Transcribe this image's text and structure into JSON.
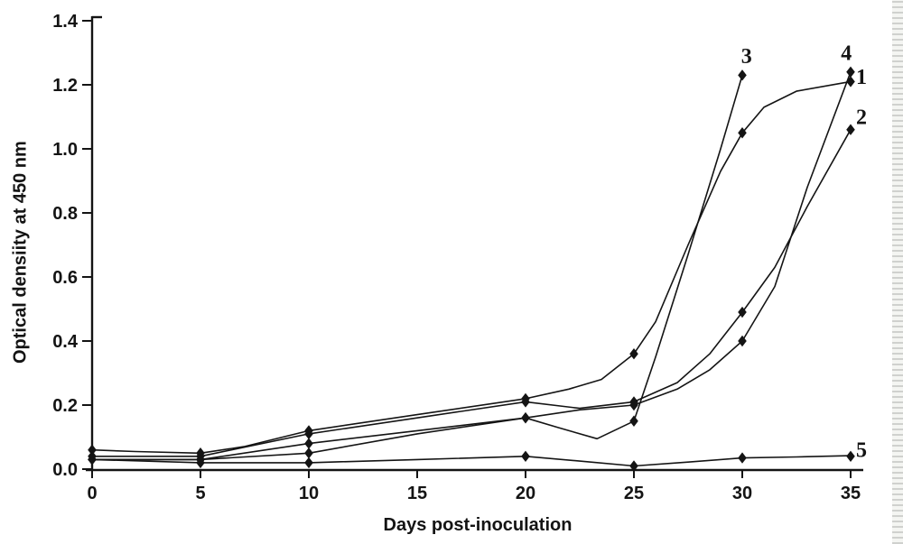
{
  "figure": {
    "background": "#ffffff",
    "ink": "#141414",
    "scan_strip_colors": [
      "#c7c9c6",
      "#f2f3f0"
    ]
  },
  "chart_data": {
    "type": "line",
    "title": "",
    "xlabel": "Days post-inoculation",
    "ylabel": "Optical densiity at 450 nm",
    "xlim": [
      0,
      35
    ],
    "ylim": [
      0.0,
      1.4
    ],
    "xticks": [
      0,
      5,
      10,
      15,
      20,
      25,
      30,
      35
    ],
    "ytick_labels": [
      "0.0",
      "0.2",
      "0.4",
      "0.6",
      "0.8",
      "1.0",
      "1.2",
      "1.4"
    ],
    "grid": false,
    "legend_position": "numeric labels at curve ends",
    "marker_shape": "filled-diamond",
    "series": [
      {
        "name": "1",
        "markers": [
          [
            0,
            0.06
          ],
          [
            5,
            0.05
          ],
          [
            10,
            0.12
          ],
          [
            20,
            0.22
          ],
          [
            25,
            0.36
          ],
          [
            30,
            1.05
          ],
          [
            35,
            1.21
          ]
        ],
        "path": [
          [
            0,
            0.06
          ],
          [
            2,
            0.055
          ],
          [
            5,
            0.05
          ],
          [
            7,
            0.07
          ],
          [
            10,
            0.12
          ],
          [
            15,
            0.17
          ],
          [
            20,
            0.22
          ],
          [
            22,
            0.25
          ],
          [
            23.5,
            0.28
          ],
          [
            25,
            0.36
          ],
          [
            26,
            0.46
          ],
          [
            27.5,
            0.7
          ],
          [
            29,
            0.93
          ],
          [
            30,
            1.05
          ],
          [
            31,
            1.13
          ],
          [
            32.5,
            1.18
          ],
          [
            35,
            1.21
          ]
        ],
        "label": {
          "text": "1",
          "x": 35.5,
          "y": 1.225
        }
      },
      {
        "name": "2",
        "markers": [
          [
            0,
            0.04
          ],
          [
            5,
            0.04
          ],
          [
            10,
            0.11
          ],
          [
            20,
            0.21
          ],
          [
            25,
            0.21
          ],
          [
            30,
            0.49
          ],
          [
            35,
            1.06
          ]
        ],
        "path": [
          [
            0,
            0.04
          ],
          [
            5,
            0.04
          ],
          [
            10,
            0.11
          ],
          [
            15,
            0.16
          ],
          [
            20,
            0.21
          ],
          [
            22.5,
            0.19
          ],
          [
            25,
            0.21
          ],
          [
            27,
            0.27
          ],
          [
            28.5,
            0.36
          ],
          [
            30,
            0.49
          ],
          [
            31.5,
            0.63
          ],
          [
            33,
            0.82
          ],
          [
            35,
            1.06
          ]
        ],
        "label": {
          "text": "2",
          "x": 35.5,
          "y": 1.1
        }
      },
      {
        "name": "3",
        "markers": [
          [
            0,
            0.03
          ],
          [
            5,
            0.03
          ],
          [
            10,
            0.08
          ],
          [
            20,
            0.16
          ],
          [
            25,
            0.15
          ],
          [
            30,
            1.23
          ]
        ],
        "path": [
          [
            0,
            0.03
          ],
          [
            5,
            0.03
          ],
          [
            10,
            0.08
          ],
          [
            15,
            0.12
          ],
          [
            20,
            0.16
          ],
          [
            21.5,
            0.13
          ],
          [
            23.3,
            0.095
          ],
          [
            25,
            0.15
          ],
          [
            26,
            0.35
          ],
          [
            27.5,
            0.67
          ],
          [
            29,
            1.0
          ],
          [
            30,
            1.23
          ]
        ],
        "label": {
          "text": "3",
          "x": 30.2,
          "y": 1.29
        }
      },
      {
        "name": "4",
        "markers": [
          [
            0,
            0.03
          ],
          [
            5,
            0.03
          ],
          [
            10,
            0.05
          ],
          [
            20,
            0.16
          ],
          [
            25,
            0.2
          ],
          [
            30,
            0.4
          ],
          [
            35,
            1.24
          ]
        ],
        "path": [
          [
            0,
            0.03
          ],
          [
            5,
            0.03
          ],
          [
            10,
            0.05
          ],
          [
            15,
            0.11
          ],
          [
            20,
            0.16
          ],
          [
            22.5,
            0.185
          ],
          [
            25,
            0.2
          ],
          [
            27,
            0.25
          ],
          [
            28.5,
            0.31
          ],
          [
            30,
            0.4
          ],
          [
            31.5,
            0.57
          ],
          [
            33,
            0.88
          ],
          [
            35,
            1.24
          ]
        ],
        "label": {
          "text": "4",
          "x": 34.8,
          "y": 1.3
        }
      },
      {
        "name": "5",
        "markers": [
          [
            0,
            0.03
          ],
          [
            5,
            0.02
          ],
          [
            10,
            0.02
          ],
          [
            20,
            0.04
          ],
          [
            25,
            0.01
          ],
          [
            30,
            0.035
          ],
          [
            35,
            0.04
          ]
        ],
        "path": [
          [
            0,
            0.03
          ],
          [
            5,
            0.02
          ],
          [
            10,
            0.02
          ],
          [
            15,
            0.03
          ],
          [
            20,
            0.04
          ],
          [
            22.5,
            0.025
          ],
          [
            25,
            0.01
          ],
          [
            27.5,
            0.022
          ],
          [
            30,
            0.035
          ],
          [
            32.5,
            0.038
          ],
          [
            35,
            0.042
          ]
        ],
        "label": {
          "text": "5",
          "x": 35.5,
          "y": 0.06
        }
      }
    ]
  }
}
